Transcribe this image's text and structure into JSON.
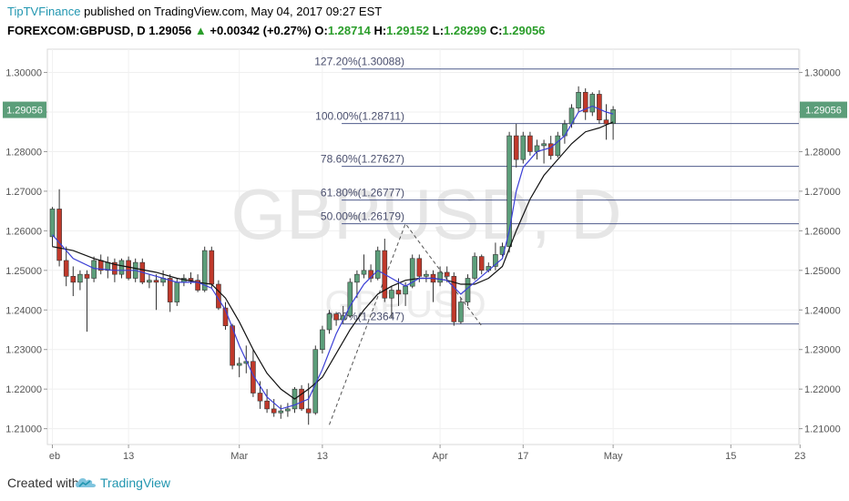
{
  "header": {
    "publisher": "TipTVFinance",
    "published_text": "published on TradingView.com, May 04, 2017 09:27 EST",
    "symbol": "FOREXCOM:GBPUSD, D",
    "last": "1.29056",
    "change_arrow": "▲",
    "change": "+0.00342 (+0.27%)",
    "open_label": "O:",
    "open": "1.28714",
    "high_label": "H:",
    "high": "1.29152",
    "low_label": "L:",
    "low": "1.28299",
    "close_label": "C:",
    "close": "1.29056"
  },
  "footer": {
    "created_with": "Created with",
    "brand": "TradingView",
    "logo_icon": "tradingview-cloud-icon"
  },
  "colors": {
    "up_candle": "#5c9e7a",
    "down_candle": "#c0392b",
    "fib_line": "#4f5b8c",
    "fast_ma": "#3b3fd6",
    "slow_ma": "#111111",
    "price_tag": "#5c9e7a",
    "watermark": "#e6e6e6",
    "brand": "#2196b0"
  },
  "chart_data": {
    "type": "candlestick",
    "watermark_main": "GBPUSD, D",
    "watermark_sub": "GBPUSD",
    "last_price_label": "1.29056",
    "last_price": 1.29056,
    "ylim": [
      1.206,
      1.3045
    ],
    "y_ticks": [
      1.21,
      1.22,
      1.23,
      1.24,
      1.25,
      1.26,
      1.27,
      1.28,
      1.29,
      1.3
    ],
    "y_tick_labels": [
      "1.21000",
      "1.22000",
      "1.23000",
      "1.24000",
      "1.25000",
      "1.26000",
      "1.27000",
      "1.28000",
      "1.29000",
      "1.30000"
    ],
    "x_range": [
      0,
      114
    ],
    "x_ticks": [
      {
        "x": 0,
        "label": "eb"
      },
      {
        "x": 11,
        "label": "13"
      },
      {
        "x": 27,
        "label": "Mar"
      },
      {
        "x": 39,
        "label": "13"
      },
      {
        "x": 56,
        "label": "Apr"
      },
      {
        "x": 68,
        "label": "17"
      },
      {
        "x": 81,
        "label": "May"
      },
      {
        "x": 98,
        "label": "15"
      },
      {
        "x": 108,
        "label": "23"
      }
    ],
    "fib_levels": [
      {
        "label": "127.20%(1.30088)",
        "value": 1.30088
      },
      {
        "label": "100.00%(1.28711)",
        "value": 1.28711
      },
      {
        "label": "78.60%(1.27627)",
        "value": 1.27627
      },
      {
        "label": "61.80%(1.26777)",
        "value": 1.26777
      },
      {
        "label": "50.00%(1.26179)",
        "value": 1.26179
      },
      {
        "label": "0.00%(1.23647)",
        "value": 1.23647
      }
    ],
    "fib_start_x": 41,
    "fib_label_x": 44,
    "fib_swing_path": [
      [
        40,
        1.211
      ],
      [
        51,
        1.2618
      ],
      [
        62,
        1.236
      ]
    ],
    "candles": [
      {
        "x": 0,
        "o": 1.2585,
        "h": 1.266,
        "l": 1.256,
        "c": 1.2655
      },
      {
        "x": 1,
        "o": 1.2655,
        "h": 1.2705,
        "l": 1.251,
        "c": 1.2525
      },
      {
        "x": 2,
        "o": 1.2525,
        "h": 1.256,
        "l": 1.246,
        "c": 1.2485
      },
      {
        "x": 3,
        "o": 1.2485,
        "h": 1.251,
        "l": 1.2435,
        "c": 1.247
      },
      {
        "x": 4,
        "o": 1.247,
        "h": 1.25,
        "l": 1.245,
        "c": 1.249
      },
      {
        "x": 5,
        "o": 1.249,
        "h": 1.25,
        "l": 1.2345,
        "c": 1.248
      },
      {
        "x": 6,
        "o": 1.248,
        "h": 1.2535,
        "l": 1.247,
        "c": 1.2525
      },
      {
        "x": 7,
        "o": 1.2525,
        "h": 1.254,
        "l": 1.249,
        "c": 1.25
      },
      {
        "x": 8,
        "o": 1.25,
        "h": 1.2535,
        "l": 1.248,
        "c": 1.252
      },
      {
        "x": 9,
        "o": 1.252,
        "h": 1.253,
        "l": 1.247,
        "c": 1.249
      },
      {
        "x": 10,
        "o": 1.249,
        "h": 1.253,
        "l": 1.248,
        "c": 1.2525
      },
      {
        "x": 11,
        "o": 1.2525,
        "h": 1.2535,
        "l": 1.2475,
        "c": 1.248
      },
      {
        "x": 12,
        "o": 1.248,
        "h": 1.253,
        "l": 1.247,
        "c": 1.252
      },
      {
        "x": 13,
        "o": 1.252,
        "h": 1.253,
        "l": 1.2465,
        "c": 1.247
      },
      {
        "x": 14,
        "o": 1.247,
        "h": 1.249,
        "l": 1.2455,
        "c": 1.2475
      },
      {
        "x": 15,
        "o": 1.2475,
        "h": 1.249,
        "l": 1.24,
        "c": 1.247
      },
      {
        "x": 16,
        "o": 1.247,
        "h": 1.25,
        "l": 1.246,
        "c": 1.248
      },
      {
        "x": 17,
        "o": 1.248,
        "h": 1.249,
        "l": 1.2395,
        "c": 1.242
      },
      {
        "x": 18,
        "o": 1.242,
        "h": 1.248,
        "l": 1.241,
        "c": 1.247
      },
      {
        "x": 19,
        "o": 1.247,
        "h": 1.249,
        "l": 1.246,
        "c": 1.248
      },
      {
        "x": 20,
        "o": 1.248,
        "h": 1.2495,
        "l": 1.2465,
        "c": 1.2475
      },
      {
        "x": 21,
        "o": 1.2475,
        "h": 1.249,
        "l": 1.2445,
        "c": 1.245
      },
      {
        "x": 22,
        "o": 1.245,
        "h": 1.256,
        "l": 1.2445,
        "c": 1.255
      },
      {
        "x": 23,
        "o": 1.255,
        "h": 1.256,
        "l": 1.2455,
        "c": 1.2465
      },
      {
        "x": 24,
        "o": 1.2465,
        "h": 1.2475,
        "l": 1.24,
        "c": 1.2405
      },
      {
        "x": 25,
        "o": 1.2405,
        "h": 1.242,
        "l": 1.235,
        "c": 1.236
      },
      {
        "x": 26,
        "o": 1.236,
        "h": 1.2365,
        "l": 1.225,
        "c": 1.226
      },
      {
        "x": 27,
        "o": 1.226,
        "h": 1.228,
        "l": 1.223,
        "c": 1.2265
      },
      {
        "x": 28,
        "o": 1.2265,
        "h": 1.231,
        "l": 1.224,
        "c": 1.227
      },
      {
        "x": 29,
        "o": 1.227,
        "h": 1.23,
        "l": 1.218,
        "c": 1.219
      },
      {
        "x": 30,
        "o": 1.219,
        "h": 1.222,
        "l": 1.215,
        "c": 1.217
      },
      {
        "x": 31,
        "o": 1.217,
        "h": 1.22,
        "l": 1.214,
        "c": 1.215
      },
      {
        "x": 32,
        "o": 1.215,
        "h": 1.2175,
        "l": 1.213,
        "c": 1.214
      },
      {
        "x": 33,
        "o": 1.214,
        "h": 1.216,
        "l": 1.2125,
        "c": 1.2145
      },
      {
        "x": 34,
        "o": 1.2145,
        "h": 1.2165,
        "l": 1.213,
        "c": 1.215
      },
      {
        "x": 35,
        "o": 1.215,
        "h": 1.2205,
        "l": 1.214,
        "c": 1.22
      },
      {
        "x": 36,
        "o": 1.22,
        "h": 1.221,
        "l": 1.2145,
        "c": 1.215
      },
      {
        "x": 37,
        "o": 1.215,
        "h": 1.2215,
        "l": 1.211,
        "c": 1.214
      },
      {
        "x": 38,
        "o": 1.214,
        "h": 1.231,
        "l": 1.2135,
        "c": 1.23
      },
      {
        "x": 39,
        "o": 1.23,
        "h": 1.236,
        "l": 1.229,
        "c": 1.235
      },
      {
        "x": 40,
        "o": 1.235,
        "h": 1.24,
        "l": 1.234,
        "c": 1.239
      },
      {
        "x": 41,
        "o": 1.239,
        "h": 1.2395,
        "l": 1.236,
        "c": 1.2375
      },
      {
        "x": 42,
        "o": 1.2375,
        "h": 1.241,
        "l": 1.2365,
        "c": 1.2385
      },
      {
        "x": 43,
        "o": 1.2385,
        "h": 1.248,
        "l": 1.238,
        "c": 1.247
      },
      {
        "x": 44,
        "o": 1.247,
        "h": 1.25,
        "l": 1.243,
        "c": 1.249
      },
      {
        "x": 45,
        "o": 1.249,
        "h": 1.254,
        "l": 1.248,
        "c": 1.25
      },
      {
        "x": 46,
        "o": 1.25,
        "h": 1.2515,
        "l": 1.247,
        "c": 1.248
      },
      {
        "x": 47,
        "o": 1.248,
        "h": 1.256,
        "l": 1.2475,
        "c": 1.255
      },
      {
        "x": 48,
        "o": 1.255,
        "h": 1.258,
        "l": 1.242,
        "c": 1.243
      },
      {
        "x": 49,
        "o": 1.243,
        "h": 1.246,
        "l": 1.238,
        "c": 1.245
      },
      {
        "x": 50,
        "o": 1.245,
        "h": 1.248,
        "l": 1.241,
        "c": 1.244
      },
      {
        "x": 51,
        "o": 1.244,
        "h": 1.247,
        "l": 1.241,
        "c": 1.246
      },
      {
        "x": 52,
        "o": 1.246,
        "h": 1.254,
        "l": 1.2455,
        "c": 1.253
      },
      {
        "x": 53,
        "o": 1.253,
        "h": 1.254,
        "l": 1.247,
        "c": 1.2485
      },
      {
        "x": 54,
        "o": 1.2485,
        "h": 1.25,
        "l": 1.247,
        "c": 1.249
      },
      {
        "x": 55,
        "o": 1.249,
        "h": 1.25,
        "l": 1.242,
        "c": 1.247
      },
      {
        "x": 56,
        "o": 1.247,
        "h": 1.251,
        "l": 1.246,
        "c": 1.2495
      },
      {
        "x": 57,
        "o": 1.2495,
        "h": 1.251,
        "l": 1.247,
        "c": 1.2485
      },
      {
        "x": 58,
        "o": 1.2485,
        "h": 1.2495,
        "l": 1.236,
        "c": 1.237
      },
      {
        "x": 59,
        "o": 1.237,
        "h": 1.243,
        "l": 1.2365,
        "c": 1.242
      },
      {
        "x": 60,
        "o": 1.242,
        "h": 1.249,
        "l": 1.241,
        "c": 1.248
      },
      {
        "x": 61,
        "o": 1.248,
        "h": 1.2545,
        "l": 1.2475,
        "c": 1.2535
      },
      {
        "x": 62,
        "o": 1.2535,
        "h": 1.254,
        "l": 1.249,
        "c": 1.25
      },
      {
        "x": 63,
        "o": 1.25,
        "h": 1.252,
        "l": 1.2495,
        "c": 1.251
      },
      {
        "x": 64,
        "o": 1.251,
        "h": 1.257,
        "l": 1.25,
        "c": 1.254
      },
      {
        "x": 65,
        "o": 1.254,
        "h": 1.257,
        "l": 1.2535,
        "c": 1.256
      },
      {
        "x": 66,
        "o": 1.256,
        "h": 1.285,
        "l": 1.2545,
        "c": 1.284
      },
      {
        "x": 67,
        "o": 1.284,
        "h": 1.287,
        "l": 1.276,
        "c": 1.278
      },
      {
        "x": 68,
        "o": 1.278,
        "h": 1.285,
        "l": 1.277,
        "c": 1.284
      },
      {
        "x": 69,
        "o": 1.284,
        "h": 1.285,
        "l": 1.279,
        "c": 1.28
      },
      {
        "x": 70,
        "o": 1.28,
        "h": 1.283,
        "l": 1.278,
        "c": 1.2815
      },
      {
        "x": 71,
        "o": 1.2815,
        "h": 1.283,
        "l": 1.277,
        "c": 1.282
      },
      {
        "x": 72,
        "o": 1.282,
        "h": 1.284,
        "l": 1.278,
        "c": 1.279
      },
      {
        "x": 73,
        "o": 1.279,
        "h": 1.285,
        "l": 1.2785,
        "c": 1.284
      },
      {
        "x": 74,
        "o": 1.284,
        "h": 1.288,
        "l": 1.282,
        "c": 1.287
      },
      {
        "x": 75,
        "o": 1.287,
        "h": 1.292,
        "l": 1.286,
        "c": 1.291
      },
      {
        "x": 76,
        "o": 1.291,
        "h": 1.2965,
        "l": 1.29,
        "c": 1.295
      },
      {
        "x": 77,
        "o": 1.295,
        "h": 1.296,
        "l": 1.288,
        "c": 1.29
      },
      {
        "x": 78,
        "o": 1.29,
        "h": 1.295,
        "l": 1.289,
        "c": 1.2945
      },
      {
        "x": 79,
        "o": 1.2945,
        "h": 1.2955,
        "l": 1.287,
        "c": 1.288
      },
      {
        "x": 80,
        "o": 1.288,
        "h": 1.292,
        "l": 1.283,
        "c": 1.287
      },
      {
        "x": 81,
        "o": 1.2871,
        "h": 1.2915,
        "l": 1.283,
        "c": 1.2906
      }
    ],
    "ma_fast": [
      [
        0,
        1.259
      ],
      [
        3,
        1.253
      ],
      [
        6,
        1.2505
      ],
      [
        9,
        1.25
      ],
      [
        12,
        1.25
      ],
      [
        15,
        1.2485
      ],
      [
        18,
        1.247
      ],
      [
        21,
        1.247
      ],
      [
        23,
        1.2455
      ],
      [
        25,
        1.24
      ],
      [
        27,
        1.231
      ],
      [
        29,
        1.2235
      ],
      [
        31,
        1.218
      ],
      [
        33,
        1.215
      ],
      [
        35,
        1.216
      ],
      [
        37,
        1.2175
      ],
      [
        39,
        1.225
      ],
      [
        41,
        1.234
      ],
      [
        43,
        1.241
      ],
      [
        45,
        1.2465
      ],
      [
        47,
        1.25
      ],
      [
        49,
        1.248
      ],
      [
        51,
        1.246
      ],
      [
        53,
        1.248
      ],
      [
        55,
        1.248
      ],
      [
        57,
        1.2475
      ],
      [
        59,
        1.244
      ],
      [
        61,
        1.247
      ],
      [
        63,
        1.25
      ],
      [
        65,
        1.253
      ],
      [
        66,
        1.26
      ],
      [
        67,
        1.27
      ],
      [
        68,
        1.276
      ],
      [
        70,
        1.28
      ],
      [
        72,
        1.281
      ],
      [
        74,
        1.284
      ],
      [
        76,
        1.29
      ],
      [
        78,
        1.2915
      ],
      [
        80,
        1.29
      ],
      [
        81,
        1.2895
      ]
    ],
    "ma_slow": [
      [
        0,
        1.256
      ],
      [
        3,
        1.255
      ],
      [
        6,
        1.253
      ],
      [
        9,
        1.2515
      ],
      [
        12,
        1.2505
      ],
      [
        15,
        1.2495
      ],
      [
        18,
        1.248
      ],
      [
        21,
        1.247
      ],
      [
        23,
        1.2465
      ],
      [
        25,
        1.243
      ],
      [
        27,
        1.237
      ],
      [
        29,
        1.23
      ],
      [
        31,
        1.224
      ],
      [
        33,
        1.22
      ],
      [
        35,
        1.2175
      ],
      [
        37,
        1.22
      ],
      [
        39,
        1.223
      ],
      [
        41,
        1.229
      ],
      [
        43,
        1.235
      ],
      [
        45,
        1.24
      ],
      [
        47,
        1.244
      ],
      [
        49,
        1.246
      ],
      [
        51,
        1.2475
      ],
      [
        53,
        1.248
      ],
      [
        55,
        1.248
      ],
      [
        57,
        1.2475
      ],
      [
        59,
        1.2465
      ],
      [
        61,
        1.2465
      ],
      [
        63,
        1.248
      ],
      [
        65,
        1.251
      ],
      [
        67,
        1.26
      ],
      [
        69,
        1.268
      ],
      [
        71,
        1.274
      ],
      [
        73,
        1.278
      ],
      [
        75,
        1.282
      ],
      [
        77,
        1.285
      ],
      [
        79,
        1.286
      ],
      [
        81,
        1.2875
      ]
    ]
  }
}
